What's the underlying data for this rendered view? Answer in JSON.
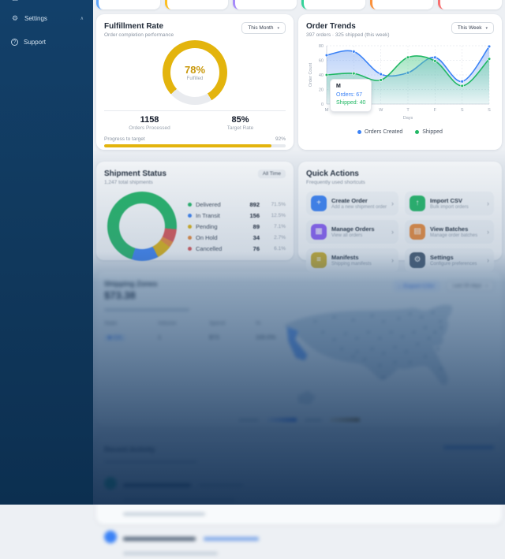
{
  "sidebar": {
    "items": [
      {
        "label": "Settings",
        "icon": "gear-icon",
        "expanded": true
      },
      {
        "label": "Support",
        "icon": "help-icon"
      }
    ]
  },
  "kpi_strip": {
    "accent_colors": [
      "#60a5fa",
      "#fbbf24",
      "#a78bfa",
      "#34d399",
      "#fb923c",
      "#f87171"
    ]
  },
  "fulfillment": {
    "title": "Fulfillment Rate",
    "subtitle": "Order completion performance",
    "period": "This Month",
    "accent": "#e3b40d",
    "gauge_value": "78%",
    "gauge_label": "Fulfilled",
    "gauge_percent": 78,
    "stats": [
      {
        "value": "1158",
        "label": "Orders Processed"
      },
      {
        "value": "85%",
        "label": "Target Rate"
      }
    ],
    "progress_label": "Progress to target",
    "progress_value": "92%",
    "progress_percent": 92
  },
  "order_trends": {
    "title": "Order Trends",
    "subtitle": "397 orders · 325 shipped (this week)",
    "period": "This Week",
    "tooltip": {
      "label": "M",
      "orders": "Orders: 67",
      "shipped": "Shipped: 40"
    },
    "chart_data": {
      "type": "area",
      "x": [
        "M",
        "T",
        "W",
        "T",
        "F",
        "S",
        "S"
      ],
      "series": [
        {
          "name": "Orders Created",
          "color": "#3b82f6",
          "fill": "#7da8f2",
          "values": [
            67,
            72,
            41,
            43,
            64,
            31,
            79
          ]
        },
        {
          "name": "Shipped",
          "color": "#22b865",
          "fill": "#5ecf93",
          "values": [
            40,
            42,
            33,
            64,
            59,
            25,
            62
          ]
        }
      ],
      "xlabel": "Days",
      "ylabel": "Order Count",
      "ylim": [
        0,
        80
      ],
      "yticks": [
        0,
        20,
        40,
        60,
        80
      ],
      "grid": true,
      "legend_position": "bottom"
    }
  },
  "shipment_status": {
    "title": "Shipment Status",
    "subtitle": "1,247 total shipments",
    "badge": "All Time",
    "chart_data": {
      "type": "pie",
      "labels": [
        "Delivered",
        "In Transit",
        "Pending",
        "On Hold",
        "Cancelled"
      ],
      "values": [
        892,
        156,
        89,
        34,
        76
      ],
      "percentages": [
        "71.5%",
        "12.5%",
        "7.1%",
        "2.7%",
        "6.1%"
      ],
      "colors": [
        "#22b865",
        "#3b82f6",
        "#e3b40d",
        "#ed8936",
        "#e05252"
      ],
      "start_angle": 95
    }
  },
  "quick_actions": {
    "title": "Quick Actions",
    "subtitle": "Frequently used shortcuts",
    "items": [
      {
        "title": "Create Order",
        "subtitle": "Add a new shipment order",
        "color": "#3b82f6",
        "glyph": "+",
        "icon": "plus-icon"
      },
      {
        "title": "Import CSV",
        "subtitle": "Bulk import orders",
        "color": "#22b865",
        "glyph": "↑",
        "icon": "upload-icon"
      },
      {
        "title": "Manage Orders",
        "subtitle": "View all orders",
        "color": "#8b5cf6",
        "glyph": "▦",
        "icon": "orders-icon"
      },
      {
        "title": "View Batches",
        "subtitle": "Manage order batches",
        "color": "#ed8936",
        "glyph": "▤",
        "icon": "document-icon"
      },
      {
        "title": "Manifests",
        "subtitle": "Shipping manifests",
        "color": "#cfae24",
        "glyph": "≡",
        "icon": "manifest-icon"
      },
      {
        "title": "Settings",
        "subtitle": "Configure preferences",
        "color": "#44566b",
        "glyph": "⚙",
        "icon": "gear-icon"
      }
    ]
  },
  "shipping_zones": {
    "title": "Shipping Zones",
    "amount": "$73.38",
    "export_label": "Export CSV",
    "period": "Last 30 days",
    "table": {
      "headers": [
        "State",
        "Volume",
        "Spend",
        "%"
      ],
      "rows": [
        {
          "state": "CA",
          "volume": "1",
          "spend": "$73",
          "pct": "100.0%"
        }
      ]
    },
    "map_highlight_color": "#3b82f6"
  },
  "recent_activity": {
    "title": "Recent Activity",
    "item_icon_colors": [
      "#10b981",
      "#3b82f6"
    ]
  }
}
